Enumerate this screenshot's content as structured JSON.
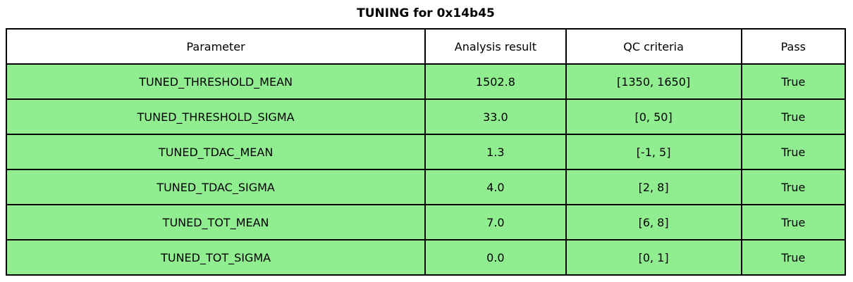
{
  "chart_data": {
    "type": "table",
    "title": "TUNING for 0x14b45",
    "columns": [
      "Parameter",
      "Analysis result",
      "QC criteria",
      "Pass"
    ],
    "rows": [
      [
        "TUNED_THRESHOLD_MEAN",
        "1502.8",
        "[1350, 1650]",
        "True"
      ],
      [
        "TUNED_THRESHOLD_SIGMA",
        "33.0",
        "[0, 50]",
        "True"
      ],
      [
        "TUNED_TDAC_MEAN",
        "1.3",
        "[-1, 5]",
        "True"
      ],
      [
        "TUNED_TDAC_SIGMA",
        "4.0",
        "[2, 8]",
        "True"
      ],
      [
        "TUNED_TOT_MEAN",
        "7.0",
        "[6, 8]",
        "True"
      ],
      [
        "TUNED_TOT_SIGMA",
        "0.0",
        "[0, 1]",
        "True"
      ]
    ],
    "colors": {
      "pass_row_bg": "#90EE90",
      "header_bg": "#ffffff",
      "border": "#000000",
      "text": "#000000"
    },
    "layout_hints": {
      "header_row": true,
      "all_pass": true
    }
  }
}
